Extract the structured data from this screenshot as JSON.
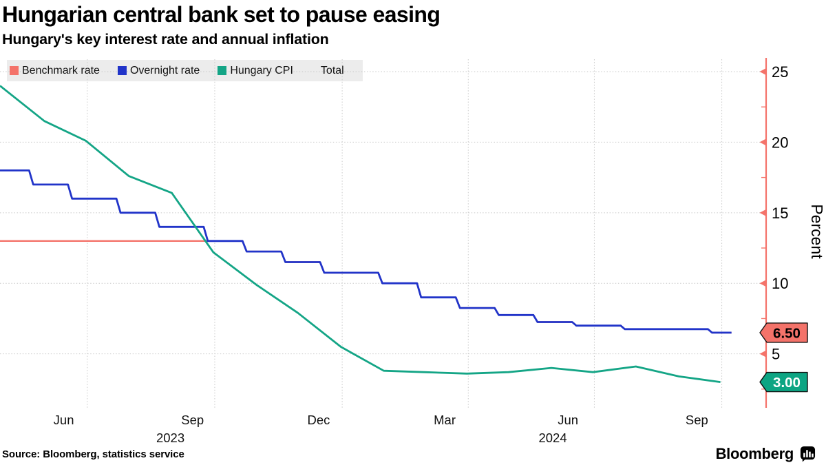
{
  "header": {
    "title": "Hungarian central bank set to pause easing",
    "subtitle": "Hungary's key interest rate and annual inflation"
  },
  "legend": {
    "items": [
      {
        "label": "Benchmark rate",
        "color": "#f4736a"
      },
      {
        "label": "Overnight rate",
        "color": "#2134c9"
      },
      {
        "label": "Hungary CPI",
        "color": "#14a586"
      },
      {
        "label": "Total",
        "color": null
      }
    ],
    "background": "#ececec"
  },
  "footer": {
    "source": "Source: Bloomberg, statistics service",
    "brand": "Bloomberg"
  },
  "chart_data": {
    "type": "line",
    "ylabel": "Percent",
    "ylim": [
      1.27,
      25.88
    ],
    "x_domain": [
      "2023-04-29",
      "2024-11-02"
    ],
    "y_ticks": [
      5,
      10,
      15,
      20,
      25
    ],
    "y_minor_ticks": [
      2.5,
      7.5,
      12.5,
      17.5,
      22.5
    ],
    "x_gridlines": [
      "2023-07-01",
      "2023-10-01",
      "2024-01-01",
      "2024-04-01",
      "2024-07-01",
      "2024-10-01"
    ],
    "x_month_labels": [
      {
        "label": "Jun",
        "date": "2023-06-14"
      },
      {
        "label": "Sep",
        "date": "2023-09-15"
      },
      {
        "label": "Dec",
        "date": "2023-12-15"
      },
      {
        "label": "Mar",
        "date": "2024-03-15"
      },
      {
        "label": "Jun",
        "date": "2024-06-12"
      },
      {
        "label": "Sep",
        "date": "2024-09-13"
      }
    ],
    "x_year_labels": [
      {
        "label": "2023",
        "date": "2023-08-30"
      },
      {
        "label": "2024",
        "date": "2024-06-01"
      }
    ],
    "grid": true,
    "legend_position": "top-left",
    "axis_color": "#f4736a",
    "grid_color": "#c9c9c9",
    "series": [
      {
        "name": "Benchmark rate",
        "color": "#f4736a",
        "style": "step",
        "width": 2.4,
        "points": [
          [
            "2023-04-29",
            13.0
          ],
          [
            "2023-10-24",
            12.25
          ],
          [
            "2023-11-21",
            11.5
          ],
          [
            "2023-12-19",
            10.75
          ],
          [
            "2024-01-30",
            10.0
          ],
          [
            "2024-02-27",
            9.0
          ],
          [
            "2024-03-26",
            8.25
          ],
          [
            "2024-04-23",
            7.75
          ],
          [
            "2024-05-21",
            7.25
          ],
          [
            "2024-06-18",
            7.0
          ],
          [
            "2024-07-23",
            6.75
          ],
          [
            "2024-09-24",
            6.5
          ],
          [
            "2024-10-08",
            6.5
          ]
        ]
      },
      {
        "name": "Overnight rate",
        "color": "#2134c9",
        "style": "step",
        "width": 2.8,
        "points": [
          [
            "2023-04-29",
            18.0
          ],
          [
            "2023-05-23",
            17.0
          ],
          [
            "2023-06-20",
            16.0
          ],
          [
            "2023-07-25",
            15.0
          ],
          [
            "2023-08-22",
            14.0
          ],
          [
            "2023-09-26",
            13.0
          ],
          [
            "2023-10-24",
            12.25
          ],
          [
            "2023-11-21",
            11.5
          ],
          [
            "2023-12-19",
            10.75
          ],
          [
            "2024-01-30",
            10.0
          ],
          [
            "2024-02-27",
            9.0
          ],
          [
            "2024-03-26",
            8.25
          ],
          [
            "2024-04-23",
            7.75
          ],
          [
            "2024-05-21",
            7.25
          ],
          [
            "2024-06-18",
            7.0
          ],
          [
            "2024-07-23",
            6.75
          ],
          [
            "2024-09-24",
            6.5
          ],
          [
            "2024-10-08",
            6.5
          ]
        ]
      },
      {
        "name": "Hungary CPI",
        "color": "#14a586",
        "style": "linear",
        "width": 2.8,
        "points": [
          [
            "2023-04-29",
            24.0
          ],
          [
            "2023-05-31",
            21.5
          ],
          [
            "2023-06-30",
            20.1
          ],
          [
            "2023-07-31",
            17.6
          ],
          [
            "2023-08-31",
            16.4
          ],
          [
            "2023-09-30",
            12.2
          ],
          [
            "2023-10-31",
            9.9
          ],
          [
            "2023-11-30",
            7.9
          ],
          [
            "2023-12-31",
            5.5
          ],
          [
            "2024-01-31",
            3.8
          ],
          [
            "2024-02-29",
            3.7
          ],
          [
            "2024-03-31",
            3.6
          ],
          [
            "2024-04-30",
            3.7
          ],
          [
            "2024-05-31",
            4.0
          ],
          [
            "2024-06-30",
            3.7
          ],
          [
            "2024-07-31",
            4.1
          ],
          [
            "2024-08-31",
            3.4
          ],
          [
            "2024-09-30",
            3.0
          ]
        ]
      }
    ],
    "end_labels": [
      {
        "text": "6.50",
        "value": 6.5,
        "bg": "#f4736a",
        "text_color": "#000000",
        "border": "#111111"
      },
      {
        "text": "3.00",
        "value": 3.0,
        "bg": "#0da583",
        "text_color": "#ffffff",
        "border": "#111111"
      }
    ]
  }
}
